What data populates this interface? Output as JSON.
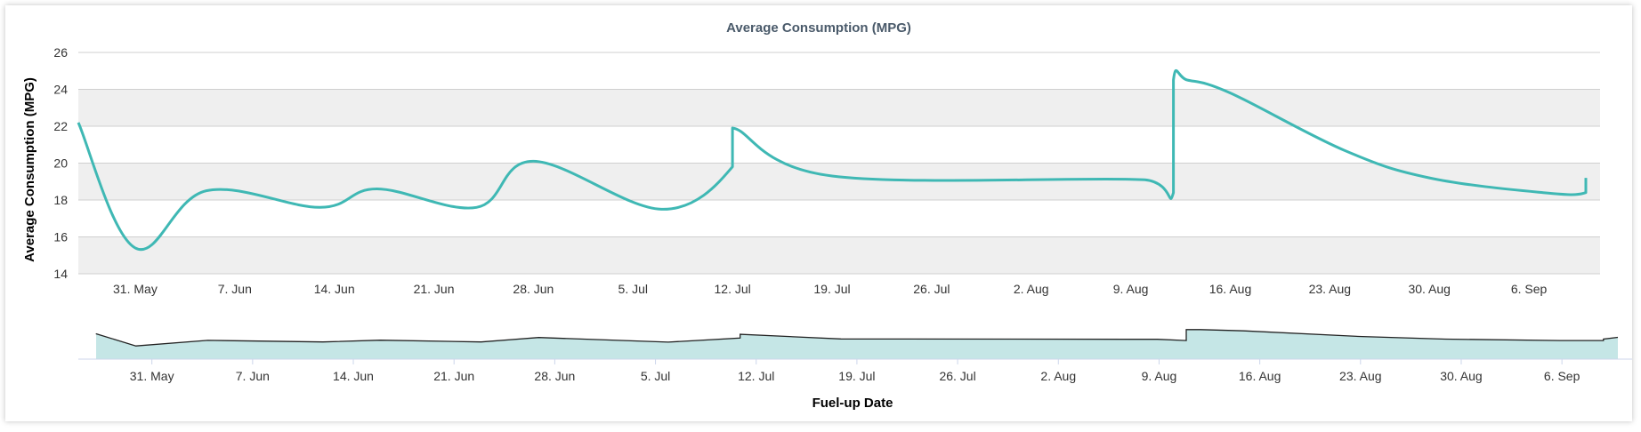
{
  "chart_data": {
    "type": "line",
    "title": "Average Consumption (MPG)",
    "ylabel": "Average Consumption (MPG)",
    "xlabel": "Fuel-up Date",
    "ylim": [
      14,
      26
    ],
    "yticks": [
      14,
      16,
      18,
      20,
      22,
      24,
      26
    ],
    "x_range": [
      "2025-05-27",
      "2025-09-11"
    ],
    "xticks": [
      {
        "date": "2025-05-31",
        "label": "31. May"
      },
      {
        "date": "2025-06-07",
        "label": "7. Jun"
      },
      {
        "date": "2025-06-14",
        "label": "14. Jun"
      },
      {
        "date": "2025-06-21",
        "label": "21. Jun"
      },
      {
        "date": "2025-06-28",
        "label": "28. Jun"
      },
      {
        "date": "2025-07-05",
        "label": "5. Jul"
      },
      {
        "date": "2025-07-12",
        "label": "12. Jul"
      },
      {
        "date": "2025-07-19",
        "label": "19. Jul"
      },
      {
        "date": "2025-07-26",
        "label": "26. Jul"
      },
      {
        "date": "2025-08-02",
        "label": "2. Aug"
      },
      {
        "date": "2025-08-09",
        "label": "9. Aug"
      },
      {
        "date": "2025-08-16",
        "label": "16. Aug"
      },
      {
        "date": "2025-08-23",
        "label": "23. Aug"
      },
      {
        "date": "2025-08-30",
        "label": "30. Aug"
      },
      {
        "date": "2025-09-06",
        "label": "6. Sep"
      }
    ],
    "series": [
      {
        "name": "",
        "color": "#3fb8b4",
        "points": [
          {
            "x": "2025-05-27",
            "y": 22.2
          },
          {
            "x": "2025-05-31",
            "y": 15.4
          },
          {
            "x": "2025-06-05",
            "y": 18.5
          },
          {
            "x": "2025-06-13",
            "y": 17.6
          },
          {
            "x": "2025-06-17",
            "y": 18.6
          },
          {
            "x": "2025-06-24",
            "y": 17.6
          },
          {
            "x": "2025-06-28",
            "y": 20.1
          },
          {
            "x": "2025-07-07",
            "y": 17.5
          },
          {
            "x": "2025-07-12",
            "y": 19.8
          },
          {
            "x": "2025-07-12",
            "y": 21.9
          },
          {
            "x": "2025-07-19",
            "y": 19.3
          },
          {
            "x": "2025-08-10",
            "y": 19.1
          },
          {
            "x": "2025-08-12",
            "y": 18.4
          },
          {
            "x": "2025-08-12",
            "y": 24.5
          },
          {
            "x": "2025-08-13",
            "y": 24.5
          },
          {
            "x": "2025-08-16",
            "y": 23.8
          },
          {
            "x": "2025-08-24",
            "y": 20.7
          },
          {
            "x": "2025-08-30",
            "y": 19.2
          },
          {
            "x": "2025-09-07",
            "y": 18.4
          },
          {
            "x": "2025-09-10",
            "y": 18.4
          },
          {
            "x": "2025-09-10",
            "y": 19.2
          }
        ]
      }
    ],
    "navigator": {
      "xticks": [
        {
          "date": "2025-05-31",
          "label": "31. May"
        },
        {
          "date": "2025-06-07",
          "label": "7. Jun"
        },
        {
          "date": "2025-06-14",
          "label": "14. Jun"
        },
        {
          "date": "2025-06-21",
          "label": "21. Jun"
        },
        {
          "date": "2025-06-28",
          "label": "28. Jun"
        },
        {
          "date": "2025-07-05",
          "label": "5. Jul"
        },
        {
          "date": "2025-07-12",
          "label": "12. Jul"
        },
        {
          "date": "2025-07-19",
          "label": "19. Jul"
        },
        {
          "date": "2025-07-26",
          "label": "26. Jul"
        },
        {
          "date": "2025-08-02",
          "label": "2. Aug"
        },
        {
          "date": "2025-08-09",
          "label": "9. Aug"
        },
        {
          "date": "2025-08-16",
          "label": "16. Aug"
        },
        {
          "date": "2025-08-23",
          "label": "23. Aug"
        },
        {
          "date": "2025-08-30",
          "label": "30. Aug"
        },
        {
          "date": "2025-09-06",
          "label": "6. Sep"
        }
      ]
    },
    "plot_band_color": "#efefef",
    "navigator_fill": "#c5e6e6",
    "grid": true
  }
}
